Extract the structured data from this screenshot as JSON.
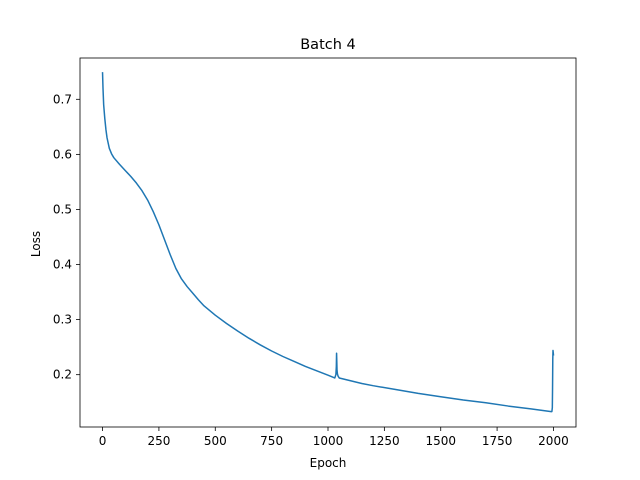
{
  "chart_data": {
    "type": "line",
    "title": "Batch 4",
    "xlabel": "Epoch",
    "ylabel": "Loss",
    "xlim": [
      -100,
      2100
    ],
    "ylim": [
      0.105,
      0.775
    ],
    "xticks": [
      0,
      250,
      500,
      750,
      1000,
      1250,
      1500,
      1750,
      2000
    ],
    "yticks": [
      0.2,
      0.3,
      0.4,
      0.5,
      0.6,
      0.7
    ],
    "grid": false,
    "line_color": "#1f77b4",
    "series": [
      {
        "x": [
          0,
          2,
          5,
          10,
          15,
          20,
          30,
          40,
          50,
          75,
          100,
          125,
          150,
          175,
          200,
          225,
          250,
          275,
          300,
          325,
          350,
          375,
          400,
          425,
          450,
          500,
          550,
          600,
          650,
          700,
          750,
          800,
          850,
          900,
          950,
          1000,
          1030,
          1035,
          1037,
          1038,
          1039,
          1040,
          1042,
          1045,
          1050,
          1100,
          1150,
          1200,
          1300,
          1400,
          1500,
          1600,
          1700,
          1800,
          1900,
          1990,
          1993,
          1995,
          1996,
          1997,
          1998,
          2000
        ],
        "values": [
          0.748,
          0.72,
          0.69,
          0.665,
          0.645,
          0.63,
          0.611,
          0.601,
          0.594,
          0.582,
          0.571,
          0.56,
          0.548,
          0.534,
          0.517,
          0.496,
          0.472,
          0.445,
          0.418,
          0.393,
          0.374,
          0.36,
          0.348,
          0.336,
          0.325,
          0.308,
          0.293,
          0.279,
          0.266,
          0.254,
          0.243,
          0.233,
          0.224,
          0.215,
          0.207,
          0.199,
          0.194,
          0.2,
          0.215,
          0.239,
          0.225,
          0.208,
          0.201,
          0.197,
          0.194,
          0.189,
          0.184,
          0.18,
          0.173,
          0.166,
          0.16,
          0.154,
          0.149,
          0.143,
          0.138,
          0.133,
          0.133,
          0.14,
          0.175,
          0.228,
          0.244,
          0.236
        ]
      }
    ]
  }
}
